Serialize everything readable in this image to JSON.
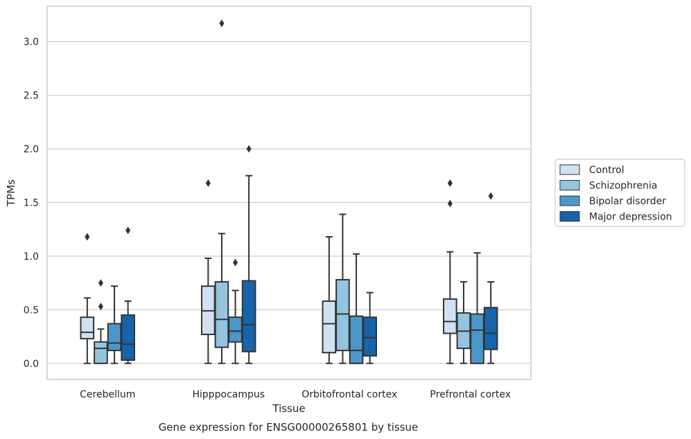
{
  "caption": "Gene expression for ENSG00000265801 by tissue",
  "chart_data": {
    "type": "box",
    "title": "",
    "xlabel": "Tissue",
    "ylabel": "TPMs",
    "ylim": [
      -0.15,
      3.33
    ],
    "yticks": [
      0.0,
      0.5,
      1.0,
      1.5,
      2.0,
      2.5,
      3.0
    ],
    "ytick_labels": [
      "0.0",
      "0.5",
      "1.0",
      "1.5",
      "2.0",
      "2.5",
      "3.0"
    ],
    "grid": "horizontal",
    "legend_position": "right, outside plot",
    "categories": [
      "Cerebellum",
      "Hipppocampus",
      "Orbitofrontal cortex",
      "Prefrontal cortex"
    ],
    "series": [
      {
        "name": "Control",
        "color": "#d0e1f2",
        "boxes": [
          {
            "whislo": 0.0,
            "q1": 0.23,
            "med": 0.29,
            "q3": 0.43,
            "whishi": 0.61,
            "fliers": [
              1.18
            ]
          },
          {
            "whislo": 0.0,
            "q1": 0.27,
            "med": 0.49,
            "q3": 0.72,
            "whishi": 0.98,
            "fliers": [
              1.68
            ]
          },
          {
            "whislo": 0.0,
            "q1": 0.1,
            "med": 0.37,
            "q3": 0.58,
            "whishi": 1.18,
            "fliers": []
          },
          {
            "whislo": 0.0,
            "q1": 0.28,
            "med": 0.39,
            "q3": 0.6,
            "whishi": 1.04,
            "fliers": [
              1.49,
              1.68
            ]
          }
        ]
      },
      {
        "name": "Schizophrenia",
        "color": "#94c4df",
        "boxes": [
          {
            "whislo": 0.0,
            "q1": 0.0,
            "med": 0.14,
            "q3": 0.2,
            "whishi": 0.32,
            "fliers": [
              0.53,
              0.75
            ]
          },
          {
            "whislo": 0.0,
            "q1": 0.15,
            "med": 0.41,
            "q3": 0.76,
            "whishi": 1.21,
            "fliers": [
              3.17
            ]
          },
          {
            "whislo": 0.0,
            "q1": 0.12,
            "med": 0.46,
            "q3": 0.78,
            "whishi": 1.39,
            "fliers": []
          },
          {
            "whislo": 0.0,
            "q1": 0.14,
            "med": 0.3,
            "q3": 0.47,
            "whishi": 0.76,
            "fliers": []
          }
        ]
      },
      {
        "name": "Bipolar disorder",
        "color": "#4a98c9",
        "boxes": [
          {
            "whislo": 0.0,
            "q1": 0.12,
            "med": 0.19,
            "q3": 0.37,
            "whishi": 0.72,
            "fliers": []
          },
          {
            "whislo": 0.0,
            "q1": 0.2,
            "med": 0.3,
            "q3": 0.43,
            "whishi": 0.68,
            "fliers": [
              0.94
            ]
          },
          {
            "whislo": 0.0,
            "q1": 0.0,
            "med": 0.12,
            "q3": 0.44,
            "whishi": 1.02,
            "fliers": []
          },
          {
            "whislo": 0.0,
            "q1": 0.0,
            "med": 0.31,
            "q3": 0.46,
            "whishi": 1.03,
            "fliers": []
          }
        ]
      },
      {
        "name": "Major depression",
        "color": "#1764ab",
        "boxes": [
          {
            "whislo": 0.0,
            "q1": 0.03,
            "med": 0.18,
            "q3": 0.45,
            "whishi": 0.58,
            "fliers": [
              1.24
            ]
          },
          {
            "whislo": 0.0,
            "q1": 0.11,
            "med": 0.36,
            "q3": 0.77,
            "whishi": 1.75,
            "fliers": [
              2.0
            ]
          },
          {
            "whislo": 0.0,
            "q1": 0.07,
            "med": 0.24,
            "q3": 0.43,
            "whishi": 0.66,
            "fliers": []
          },
          {
            "whislo": 0.0,
            "q1": 0.13,
            "med": 0.28,
            "q3": 0.52,
            "whishi": 0.76,
            "fliers": [
              1.56
            ]
          }
        ]
      }
    ]
  }
}
